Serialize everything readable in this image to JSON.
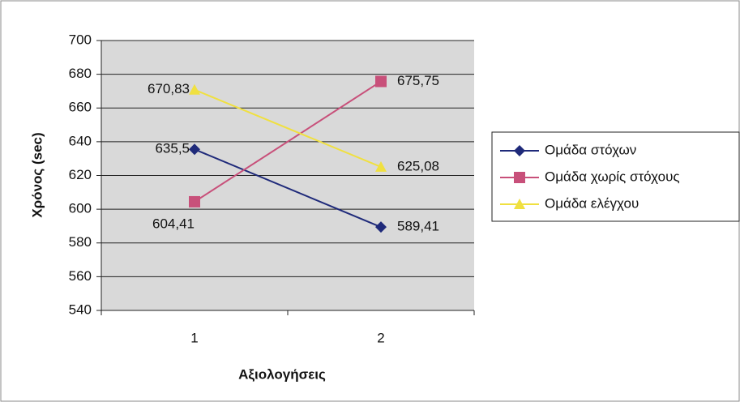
{
  "chart_data": {
    "type": "line",
    "categories": [
      "1",
      "2"
    ],
    "series": [
      {
        "name": "Ομάδα στόχων",
        "color": "#1f2a7a",
        "marker": "diamond",
        "values": [
          635.5,
          589.41
        ],
        "value_labels": [
          "635,5",
          "589,41"
        ]
      },
      {
        "name": "Ομάδα χωρίς στόχους",
        "color": "#c8507a",
        "marker": "square",
        "values": [
          604.41,
          675.75
        ],
        "value_labels": [
          "604,41",
          "675,75"
        ]
      },
      {
        "name": "Ομάδα ελέγχου",
        "color": "#f0e040",
        "marker": "triangle",
        "values": [
          670.83,
          625.08
        ],
        "value_labels": [
          "670,83",
          "625,08"
        ]
      }
    ],
    "xlabel": "Αξιολογήσεις",
    "ylabel": "Χρόνος (sec)",
    "ylim": [
      540,
      700
    ],
    "yticks": [
      540,
      560,
      580,
      600,
      620,
      640,
      660,
      680,
      700
    ],
    "grid": true,
    "legend": "right"
  }
}
